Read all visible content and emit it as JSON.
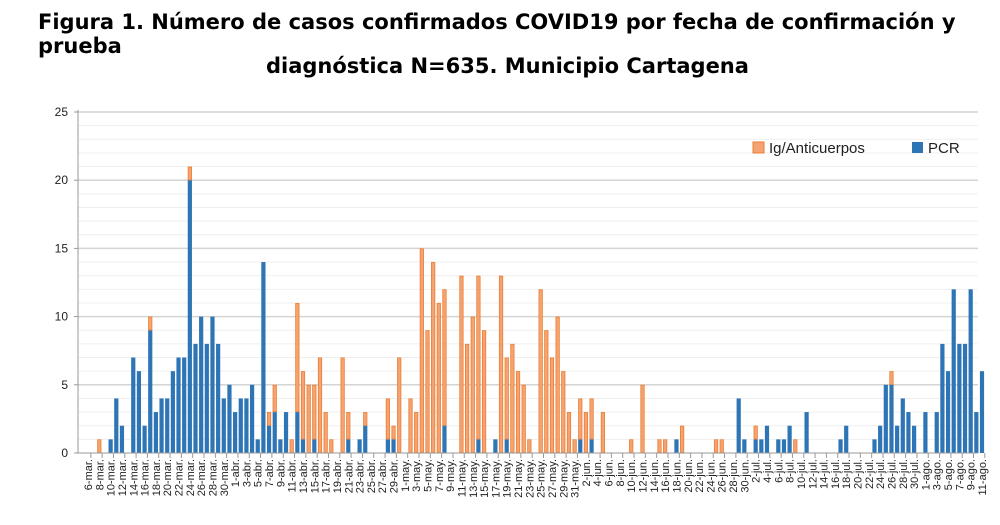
{
  "chart_data": {
    "type": "bar",
    "stacked": true,
    "title_line1": "Figura 1. Número de casos confirmados COVID19 por fecha de confirmación y prueba",
    "title_line2": "diagnóstica N=635. Municipio Cartagena",
    "xlabel": "",
    "ylabel": "",
    "ylim": [
      0,
      25
    ],
    "y_ticks": [
      "0",
      "5",
      "10",
      "15",
      "20",
      "25"
    ],
    "grid": true,
    "legend_position": "top-right",
    "first_date": "6-mar.",
    "x_tick_labels": [
      "6-mar.",
      "8-mar.",
      "10-mar.",
      "12-mar.",
      "14-mar.",
      "16-mar.",
      "18-mar.",
      "20-mar.",
      "22-mar.",
      "24-mar.",
      "26-mar.",
      "28-mar.",
      "30-mar.",
      "1-abr.",
      "3-abr.",
      "5-abr.",
      "7-abr.",
      "9-abr.",
      "11-abr.",
      "13-abr.",
      "15-abr.",
      "17-abr.",
      "19-abr.",
      "21-abr.",
      "23-abr.",
      "25-abr.",
      "27-abr.",
      "29-abr.",
      "1-may.",
      "3-may.",
      "5-may.",
      "7-may.",
      "9-may.",
      "11-may.",
      "13-may.",
      "15-may.",
      "17-may.",
      "19-may.",
      "21-may.",
      "23-may.",
      "25-may.",
      "27-may.",
      "29-may.",
      "31-may.",
      "2-jun.",
      "4-jun.",
      "6-jun.",
      "8-jun.",
      "10-jun.",
      "12-jun.",
      "14-jun.",
      "16-jun.",
      "18-jun.",
      "20-jun.",
      "22-jun.",
      "24-jun.",
      "26-jun.",
      "28-jun.",
      "30-jun.",
      "2-jul.",
      "4-jul.",
      "6-jul.",
      "8-jul.",
      "10-jul.",
      "12-jul.",
      "14-jul.",
      "16-jul.",
      "18-jul.",
      "20-jul.",
      "22-jul.",
      "24-jul.",
      "26-jul.",
      "28-jul.",
      "30-jul.",
      "1-ago.",
      "3-ago.",
      "5-ago.",
      "7-ago.",
      "9-ago.",
      "11-ago."
    ],
    "series": [
      {
        "name": "Ig/Anticuerpos",
        "color": "#f4a473",
        "edge": "#ed7d31",
        "values": [
          0,
          0,
          1,
          0,
          0,
          0,
          0,
          0,
          0,
          0,
          0,
          1,
          0,
          0,
          0,
          0,
          0,
          0,
          1,
          0,
          0,
          0,
          0,
          0,
          0,
          0,
          0,
          0,
          0,
          0,
          0,
          0,
          1,
          2,
          0,
          0,
          1,
          8,
          5,
          5,
          4,
          7,
          3,
          1,
          0,
          7,
          2,
          0,
          0,
          1,
          0,
          0,
          0,
          3,
          1,
          7,
          0,
          4,
          3,
          15,
          9,
          14,
          11,
          10,
          0,
          0,
          13,
          8,
          10,
          12,
          9,
          0,
          0,
          13,
          6,
          8,
          6,
          5,
          1,
          0,
          12,
          9,
          7,
          10,
          6,
          3,
          1,
          3,
          3,
          3,
          0,
          3,
          0,
          0,
          0,
          0,
          1,
          0,
          5,
          0,
          0,
          1,
          1,
          0,
          0,
          2,
          0,
          0,
          0,
          0,
          0,
          1,
          1,
          0,
          0,
          0,
          0,
          0,
          1,
          0,
          0,
          0,
          0,
          0,
          0,
          1,
          0,
          0,
          0,
          0,
          0,
          0,
          0,
          0,
          0,
          0,
          0,
          0,
          0,
          0,
          0,
          0,
          1,
          0,
          0,
          0,
          0,
          0,
          0,
          0,
          0,
          0,
          0,
          0,
          0,
          0,
          0,
          0,
          0
        ]
      },
      {
        "name": "PCR",
        "color": "#2e75b6",
        "edge": "#2e75b6",
        "values": [
          0,
          0,
          0,
          0,
          1,
          4,
          2,
          0,
          7,
          6,
          2,
          9,
          3,
          4,
          4,
          6,
          7,
          7,
          20,
          8,
          10,
          8,
          10,
          8,
          4,
          5,
          3,
          4,
          4,
          5,
          1,
          14,
          2,
          3,
          1,
          3,
          0,
          3,
          1,
          0,
          1,
          0,
          0,
          0,
          0,
          0,
          1,
          0,
          1,
          2,
          0,
          0,
          0,
          1,
          1,
          0,
          0,
          0,
          0,
          0,
          0,
          0,
          0,
          2,
          0,
          0,
          0,
          0,
          0,
          1,
          0,
          0,
          1,
          0,
          1,
          0,
          0,
          0,
          0,
          0,
          0,
          0,
          0,
          0,
          0,
          0,
          0,
          1,
          0,
          1,
          0,
          0,
          0,
          0,
          0,
          0,
          0,
          0,
          0,
          0,
          0,
          0,
          0,
          0,
          1,
          0,
          0,
          0,
          0,
          0,
          0,
          0,
          0,
          0,
          0,
          4,
          1,
          0,
          1,
          1,
          2,
          0,
          1,
          1,
          2,
          0,
          0,
          3,
          0,
          0,
          0,
          0,
          0,
          1,
          2,
          0,
          0,
          0,
          0,
          1,
          2,
          5,
          5,
          2,
          4,
          3,
          2,
          0,
          3,
          0,
          3,
          8,
          6,
          12,
          8,
          8,
          12,
          3,
          6
        ]
      }
    ]
  }
}
